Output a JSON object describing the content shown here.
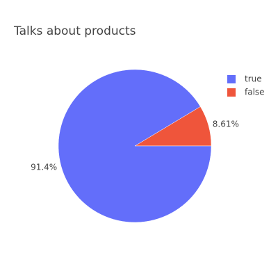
{
  "chart_data": {
    "type": "pie",
    "title": "Talks about products",
    "categories": [
      "true",
      "false"
    ],
    "values": [
      91.4,
      8.61
    ],
    "value_labels": [
      "91.4%",
      "8.61%"
    ],
    "colors": [
      "#636efa",
      "#ef553b"
    ],
    "legend": "top-right"
  }
}
